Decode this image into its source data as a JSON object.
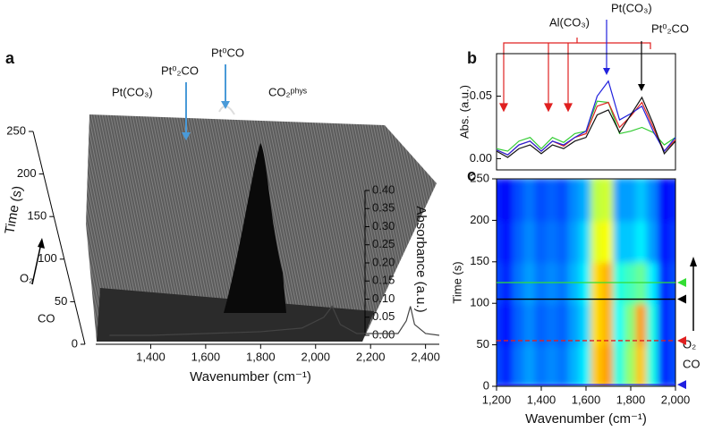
{
  "chart_data": [
    {
      "type": "waterfall",
      "panel_label": "a",
      "xlabel": "Wavenumber (cm⁻¹)",
      "ylabel": "Time (s)",
      "zlabel": "Absorbance (a.u.)",
      "annotations": [
        "Pt(CO₃)",
        "Pt⁰₂CO",
        "Pt⁰CO",
        "CO₂ᵖʰʸˢ"
      ],
      "side_labels": [
        "O₂",
        "CO"
      ],
      "xlim": [
        1200,
        2450
      ],
      "xticks": [
        {
          "value": 1400,
          "label": "1,400"
        },
        {
          "value": 1600,
          "label": "1,600"
        },
        {
          "value": 1800,
          "label": "1,800"
        },
        {
          "value": 2000,
          "label": "2,000"
        },
        {
          "value": 2200,
          "label": "2,200"
        },
        {
          "value": 2400,
          "label": "2,400"
        }
      ],
      "ylim": [
        0,
        250
      ],
      "yticks": [
        0,
        50,
        100,
        150,
        200,
        250
      ],
      "zlim": [
        0,
        0.4
      ],
      "zticks": [
        {
          "value": 0,
          "label": "0.00"
        },
        {
          "value": 0.05,
          "label": "0.05"
        },
        {
          "value": 0.1,
          "label": "0.10"
        },
        {
          "value": 0.15,
          "label": "0.15"
        },
        {
          "value": 0.2,
          "label": "0.20"
        },
        {
          "value": 0.25,
          "label": "0.25"
        },
        {
          "value": 0.3,
          "label": "0.30"
        },
        {
          "value": 0.35,
          "label": "0.35"
        },
        {
          "value": 0.4,
          "label": "0.40"
        }
      ],
      "series": [
        {
          "color": "#444444",
          "x": [
            1250,
            1400,
            1600,
            1800,
            1950,
            2030,
            2060,
            2090,
            2150,
            2300,
            2330,
            2345,
            2360,
            2400,
            2450
          ],
          "values": [
            0,
            0,
            0.005,
            0.01,
            0.02,
            0.05,
            0.08,
            0.03,
            0.005,
            0.005,
            0.04,
            0.08,
            0.03,
            0.005,
            0
          ]
        }
      ]
    },
    {
      "type": "line",
      "panel_label": "b",
      "ylabel": "Abs. (a.u.)",
      "annotations": [
        "Al(CO₃)",
        "Pt(CO₃)",
        "Pt⁰₂CO"
      ],
      "xlim": [
        1200,
        2000
      ],
      "ylim": [
        -0.009,
        0.084
      ],
      "yticks": [
        {
          "value": 0,
          "label": "0.00"
        },
        {
          "value": 0.05,
          "label": "0.05"
        }
      ],
      "x": [
        1200,
        1250,
        1300,
        1350,
        1400,
        1450,
        1500,
        1550,
        1600,
        1650,
        1700,
        1750,
        1800,
        1850,
        1900,
        1950,
        2000
      ],
      "series": [
        {
          "color": "#33cc33",
          "values": [
            0.008,
            0.006,
            0.014,
            0.017,
            0.008,
            0.017,
            0.013,
            0.02,
            0.022,
            0.046,
            0.045,
            0.02,
            0.022,
            0.025,
            0.021,
            0.011,
            0.017
          ]
        },
        {
          "color": "#dd2222",
          "values": [
            0.007,
            0.003,
            0.011,
            0.014,
            0.006,
            0.014,
            0.01,
            0.017,
            0.02,
            0.042,
            0.045,
            0.025,
            0.034,
            0.045,
            0.025,
            0.006,
            0.015
          ]
        },
        {
          "color": "#2222dd",
          "values": [
            0.007,
            0.003,
            0.011,
            0.014,
            0.006,
            0.014,
            0.011,
            0.017,
            0.022,
            0.05,
            0.062,
            0.031,
            0.036,
            0.042,
            0.022,
            0.006,
            0.017
          ]
        },
        {
          "color": "#111111",
          "values": [
            0.006,
            0.001,
            0.008,
            0.011,
            0.004,
            0.011,
            0.008,
            0.014,
            0.017,
            0.035,
            0.039,
            0.021,
            0.035,
            0.049,
            0.028,
            0.004,
            0.014
          ]
        }
      ]
    },
    {
      "type": "heatmap",
      "panel_label": "c",
      "xlabel": "Wavenumber (cm⁻¹)",
      "ylabel": "Time (s)",
      "side_labels": [
        "O₂",
        "CO"
      ],
      "xlim": [
        1200,
        2000
      ],
      "ylim": [
        0,
        250
      ],
      "clim": [
        0,
        0.05
      ],
      "xticks": [
        {
          "value": 1200,
          "label": "1,200"
        },
        {
          "value": 1400,
          "label": "1,400"
        },
        {
          "value": 1600,
          "label": "1,600"
        },
        {
          "value": 1800,
          "label": "1,800"
        },
        {
          "value": 2000,
          "label": "2,000"
        }
      ],
      "yticks": [
        0,
        50,
        100,
        150,
        200,
        250
      ],
      "x": [
        1200,
        1250,
        1300,
        1350,
        1400,
        1450,
        1500,
        1550,
        1600,
        1650,
        1700,
        1750,
        1800,
        1850,
        1900,
        1950,
        2000
      ],
      "y": [
        25,
        75,
        125,
        175,
        225
      ],
      "z": [
        [
          0.01,
          0.008,
          0.012,
          0.014,
          0.012,
          0.013,
          0.012,
          0.015,
          0.018,
          0.034,
          0.036,
          0.02,
          0.026,
          0.034,
          0.02,
          0.008,
          0.01
        ],
        [
          0.009,
          0.007,
          0.011,
          0.013,
          0.011,
          0.012,
          0.011,
          0.014,
          0.017,
          0.033,
          0.035,
          0.019,
          0.025,
          0.036,
          0.02,
          0.008,
          0.01
        ],
        [
          0.01,
          0.008,
          0.012,
          0.014,
          0.012,
          0.013,
          0.012,
          0.015,
          0.018,
          0.033,
          0.035,
          0.02,
          0.022,
          0.024,
          0.018,
          0.008,
          0.01
        ],
        [
          0.009,
          0.007,
          0.011,
          0.013,
          0.011,
          0.012,
          0.011,
          0.014,
          0.017,
          0.03,
          0.031,
          0.016,
          0.016,
          0.018,
          0.014,
          0.007,
          0.009
        ],
        [
          0.008,
          0.006,
          0.01,
          0.012,
          0.01,
          0.011,
          0.01,
          0.013,
          0.015,
          0.028,
          0.029,
          0.014,
          0.014,
          0.016,
          0.013,
          0.006,
          0.008
        ]
      ],
      "markers": [
        {
          "value": 125,
          "color": "#33dd33",
          "style": "solid"
        },
        {
          "value": 105,
          "color": "#000000",
          "style": "solid"
        },
        {
          "value": 55,
          "color": "#e02020",
          "style": "dashed"
        },
        {
          "value": 2,
          "color": "#2020e0",
          "style": "solid"
        }
      ]
    }
  ]
}
